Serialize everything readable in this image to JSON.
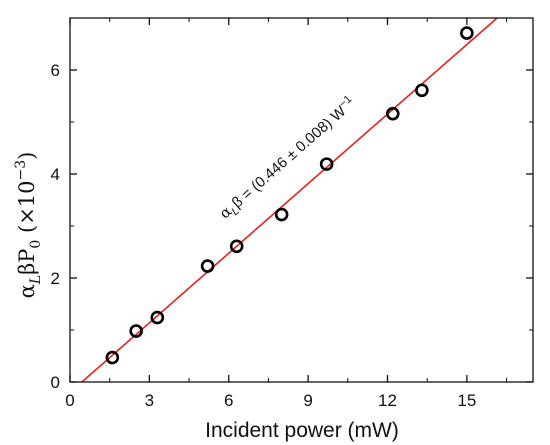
{
  "chart_data": {
    "type": "scatter",
    "xlabel": "Incident power (mW)",
    "ylabel": {
      "main": "α",
      "sub1": "L",
      "mid": "βP",
      "sub2": "0",
      "unit": " (×10",
      "exp": "−3",
      "close": ")"
    },
    "xlim": [
      0,
      17.5
    ],
    "ylim": [
      0,
      7.0
    ],
    "xticks": [
      0,
      3,
      6,
      9,
      12,
      15
    ],
    "yticks": [
      0,
      2,
      4,
      6
    ],
    "xtick_labels": [
      "0",
      "3",
      "6",
      "9",
      "12",
      "15"
    ],
    "ytick_labels": [
      "0",
      "2",
      "4",
      "6"
    ],
    "series": [
      {
        "x": [
          1.6,
          2.5,
          3.3,
          5.2,
          6.3,
          8.0,
          9.7,
          12.2,
          13.3,
          15.0
        ],
        "y": [
          0.47,
          0.98,
          1.24,
          2.23,
          2.61,
          3.22,
          4.19,
          5.16,
          5.61,
          6.71
        ],
        "color": "#000000",
        "marker": "open-circle"
      }
    ],
    "fit": {
      "slope": 0.446,
      "intercept": -0.2,
      "x_range": [
        0.45,
        17.5
      ],
      "color": "#e8201c"
    },
    "annotation": {
      "alpha": "α",
      "sub": "L",
      "rest": "β = (0.446 ± 0.008) W",
      "exp": "−1",
      "value_x": 7.9,
      "value_y": 3.05
    },
    "grid": false
  }
}
